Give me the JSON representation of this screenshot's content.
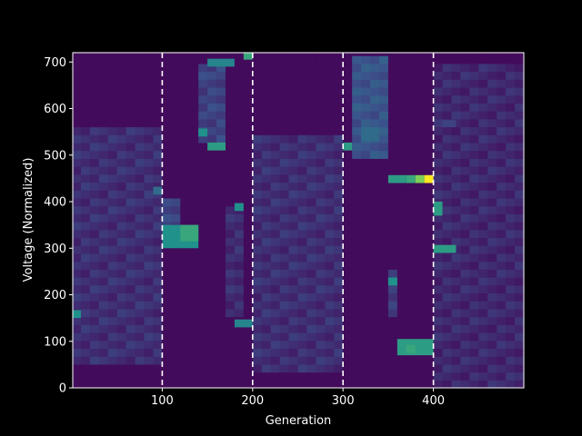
{
  "chart_data": {
    "type": "heatmap",
    "title": "",
    "xlabel": "Generation",
    "ylabel": "Voltage (Normalized)",
    "xlim": [
      1,
      500
    ],
    "ylim": [
      0,
      720
    ],
    "x_ticks": [
      100,
      200,
      300,
      400
    ],
    "y_ticks": [
      0,
      100,
      200,
      300,
      400,
      500,
      600,
      700
    ],
    "colormap": "viridis",
    "grid": false,
    "vlines": {
      "x": [
        100,
        200,
        300,
        400
      ],
      "color": "#ffffff",
      "style": "dashed"
    },
    "cell_size": {
      "generation": 10,
      "voltage": 17
    },
    "background_intensity": 0.03,
    "regions": [
      {
        "x0": 0,
        "x1": 100,
        "y0": 50,
        "y1": 560,
        "intensity": 0.14
      },
      {
        "x0": 200,
        "x1": 300,
        "y0": 40,
        "y1": 540,
        "intensity": 0.14
      },
      {
        "x0": 400,
        "x1": 500,
        "y0": 0,
        "y1": 700,
        "intensity": 0.12
      },
      {
        "x0": 140,
        "x1": 170,
        "y0": 520,
        "y1": 700,
        "intensity": 0.2
      },
      {
        "x0": 310,
        "x1": 350,
        "y0": 500,
        "y1": 720,
        "intensity": 0.26
      },
      {
        "x0": 100,
        "x1": 120,
        "y0": 300,
        "y1": 400,
        "intensity": 0.2
      },
      {
        "x0": 170,
        "x1": 190,
        "y0": 150,
        "y1": 390,
        "intensity": 0.13
      },
      {
        "x0": 350,
        "x1": 360,
        "y0": 150,
        "y1": 250,
        "intensity": 0.2
      }
    ],
    "hotspots": [
      {
        "x": 0,
        "y": 150,
        "w": 10,
        "h": 17,
        "intensity": 0.5
      },
      {
        "x": 90,
        "y": 415,
        "w": 10,
        "h": 17,
        "intensity": 0.35
      },
      {
        "x": 100,
        "y": 300,
        "w": 40,
        "h": 50,
        "intensity": 0.5
      },
      {
        "x": 120,
        "y": 315,
        "w": 20,
        "h": 35,
        "intensity": 0.6
      },
      {
        "x": 140,
        "y": 540,
        "w": 10,
        "h": 17,
        "intensity": 0.5
      },
      {
        "x": 150,
        "y": 510,
        "w": 20,
        "h": 17,
        "intensity": 0.55
      },
      {
        "x": 150,
        "y": 690,
        "w": 30,
        "h": 17,
        "intensity": 0.45
      },
      {
        "x": 180,
        "y": 380,
        "w": 10,
        "h": 17,
        "intensity": 0.5
      },
      {
        "x": 180,
        "y": 130,
        "w": 20,
        "h": 17,
        "intensity": 0.45
      },
      {
        "x": 190,
        "y": 705,
        "w": 10,
        "h": 15,
        "intensity": 0.6
      },
      {
        "x": 300,
        "y": 510,
        "w": 10,
        "h": 17,
        "intensity": 0.55
      },
      {
        "x": 320,
        "y": 530,
        "w": 20,
        "h": 30,
        "intensity": 0.35
      },
      {
        "x": 350,
        "y": 220,
        "w": 10,
        "h": 17,
        "intensity": 0.5
      },
      {
        "x": 350,
        "y": 440,
        "w": 20,
        "h": 17,
        "intensity": 0.55
      },
      {
        "x": 370,
        "y": 440,
        "w": 10,
        "h": 17,
        "intensity": 0.6
      },
      {
        "x": 380,
        "y": 440,
        "w": 10,
        "h": 17,
        "intensity": 0.8
      },
      {
        "x": 390,
        "y": 440,
        "w": 10,
        "h": 17,
        "intensity": 1.0
      },
      {
        "x": 360,
        "y": 70,
        "w": 40,
        "h": 35,
        "intensity": 0.55
      },
      {
        "x": 370,
        "y": 75,
        "w": 10,
        "h": 17,
        "intensity": 0.6
      },
      {
        "x": 400,
        "y": 370,
        "w": 10,
        "h": 30,
        "intensity": 0.55
      },
      {
        "x": 400,
        "y": 290,
        "w": 25,
        "h": 17,
        "intensity": 0.55
      },
      {
        "x": 410,
        "y": 560,
        "w": 15,
        "h": 15,
        "intensity": 0.2
      }
    ]
  }
}
